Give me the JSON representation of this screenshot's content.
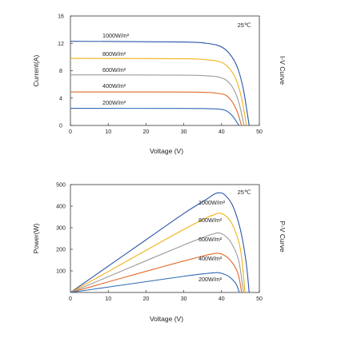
{
  "colors": {
    "1000W/m²": "#2a55a8",
    "800W/m²": "#f0b21a",
    "600W/m²": "#9c9c9c",
    "400W/m²": "#e0692a",
    "200W/m²": "#2d6bb5"
  },
  "chart_data": [
    {
      "type": "line",
      "side_label": "I-V Curve",
      "temperature": "25℃",
      "xlabel": "Voltage (V)",
      "ylabel": "Current(A)",
      "xlim": [
        0,
        50
      ],
      "ylim": [
        0,
        16
      ],
      "xticks": [
        "0",
        "10",
        "20",
        "30",
        "40",
        "50"
      ],
      "yticks": [
        "0",
        "4",
        "8",
        "12",
        "16"
      ],
      "grid": false,
      "series": [
        {
          "name": "1000W/m²",
          "x": [
            0,
            30,
            36,
            39,
            41,
            43,
            44.5,
            45.8,
            46.8,
            47.3
          ],
          "y": [
            12.3,
            12.2,
            12.0,
            11.7,
            11.1,
            9.8,
            8.0,
            5.2,
            1.8,
            0
          ]
        },
        {
          "name": "800W/m²",
          "x": [
            0,
            30,
            36,
            39,
            41,
            42.8,
            44.2,
            45.3,
            46.2,
            46.6
          ],
          "y": [
            9.8,
            9.75,
            9.6,
            9.4,
            8.9,
            7.8,
            6.2,
            4.0,
            1.3,
            0
          ]
        },
        {
          "name": "600W/m²",
          "x": [
            0,
            30,
            36,
            39,
            41,
            42.5,
            43.8,
            44.8,
            45.6,
            46.0
          ],
          "y": [
            7.4,
            7.35,
            7.25,
            7.1,
            6.7,
            5.9,
            4.6,
            2.9,
            0.9,
            0
          ]
        },
        {
          "name": "400W/m²",
          "x": [
            0,
            30,
            36,
            39,
            41,
            42.2,
            43.3,
            44.3,
            45.0,
            45.3
          ],
          "y": [
            4.9,
            4.88,
            4.82,
            4.7,
            4.45,
            3.9,
            3.0,
            1.8,
            0.5,
            0
          ]
        },
        {
          "name": "200W/m²",
          "x": [
            0,
            30,
            36,
            39,
            40.8,
            41.8,
            42.8,
            43.6,
            44.3,
            44.6
          ],
          "y": [
            2.5,
            2.49,
            2.46,
            2.4,
            2.25,
            1.95,
            1.45,
            0.85,
            0.25,
            0
          ]
        }
      ]
    },
    {
      "type": "line",
      "side_label": "P-V Curve",
      "temperature": "25℃",
      "xlabel": "Voltage (V)",
      "ylabel": "Power(W)",
      "xlim": [
        0,
        50
      ],
      "ylim": [
        0,
        500
      ],
      "xticks": [
        "0",
        "10",
        "20",
        "30",
        "40",
        "50"
      ],
      "yticks": [
        "100",
        "200",
        "300",
        "400",
        "500"
      ],
      "grid": false,
      "series": [
        {
          "name": "1000W/m²",
          "x": [
            0,
            10,
            20,
            30,
            36,
            38,
            39.5,
            41,
            43,
            45,
            46.5,
            47.3
          ],
          "y": [
            0,
            122,
            244,
            366,
            432,
            455,
            462,
            450,
            400,
            290,
            140,
            0
          ]
        },
        {
          "name": "800W/m²",
          "x": [
            0,
            10,
            20,
            30,
            36,
            38,
            39.3,
            41,
            43,
            45,
            46.2
          ],
          "y": [
            0,
            97,
            195,
            292,
            346,
            360,
            368,
            356,
            310,
            200,
            0
          ]
        },
        {
          "name": "600W/m²",
          "x": [
            0,
            10,
            20,
            30,
            36,
            38,
            39.0,
            40.5,
            42.5,
            44.5,
            45.8
          ],
          "y": [
            0,
            73,
            147,
            220,
            261,
            272,
            276,
            268,
            232,
            150,
            0
          ]
        },
        {
          "name": "400W/m²",
          "x": [
            0,
            10,
            20,
            30,
            36,
            38,
            38.8,
            40.3,
            42.3,
            44.3,
            45.3
          ],
          "y": [
            0,
            49,
            98,
            146,
            173,
            180,
            182,
            176,
            150,
            90,
            0
          ]
        },
        {
          "name": "200W/m²",
          "x": [
            0,
            10,
            20,
            30,
            36,
            38,
            38.5,
            40,
            42,
            43.8,
            44.7
          ],
          "y": [
            0,
            25,
            50,
            75,
            88,
            91,
            92,
            89,
            73,
            40,
            0
          ]
        }
      ]
    }
  ]
}
